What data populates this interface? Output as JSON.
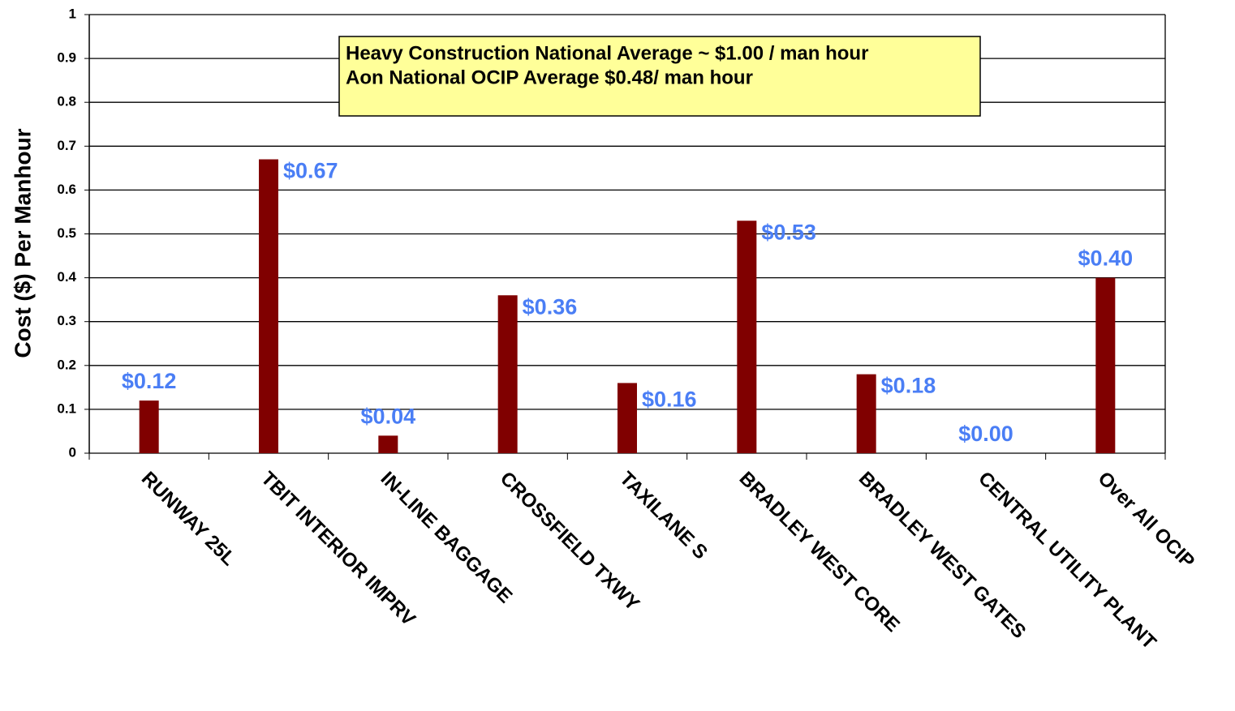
{
  "chart_data": {
    "type": "bar",
    "y_label": "Cost ($) Per Manhour",
    "annotations": [
      "Heavy Construction National Average ~ $1.00 / man hour",
      "Aon National OCIP Average $0.48/ man hour"
    ],
    "categories": [
      "RUNWAY 25L",
      "TBIT INTERIOR IMPRV",
      "IN-LINE BAGGAGE",
      "CROSSFIELD TXWY",
      "TAXILANE S",
      "BRADLEY WEST CORE",
      "BRADLEY WEST GATES",
      "CENTRAL UTILITY PLANT",
      "Over All OCIP"
    ],
    "values": [
      0.12,
      0.67,
      0.04,
      0.36,
      0.16,
      0.53,
      0.18,
      0,
      0.4
    ],
    "value_labels": [
      "$0.12",
      "$0.67",
      "$0.04",
      "$0.36",
      "$0.16",
      "$0.53",
      "$0.18",
      "$0.00",
      "$0.40"
    ],
    "color": "#800000",
    "ylim": [
      0,
      1
    ],
    "yticks": [
      0,
      0.1,
      0.2,
      0.3,
      0.4,
      0.5,
      0.6,
      0.7,
      0.8,
      0.9,
      1
    ],
    "grid": true
  }
}
